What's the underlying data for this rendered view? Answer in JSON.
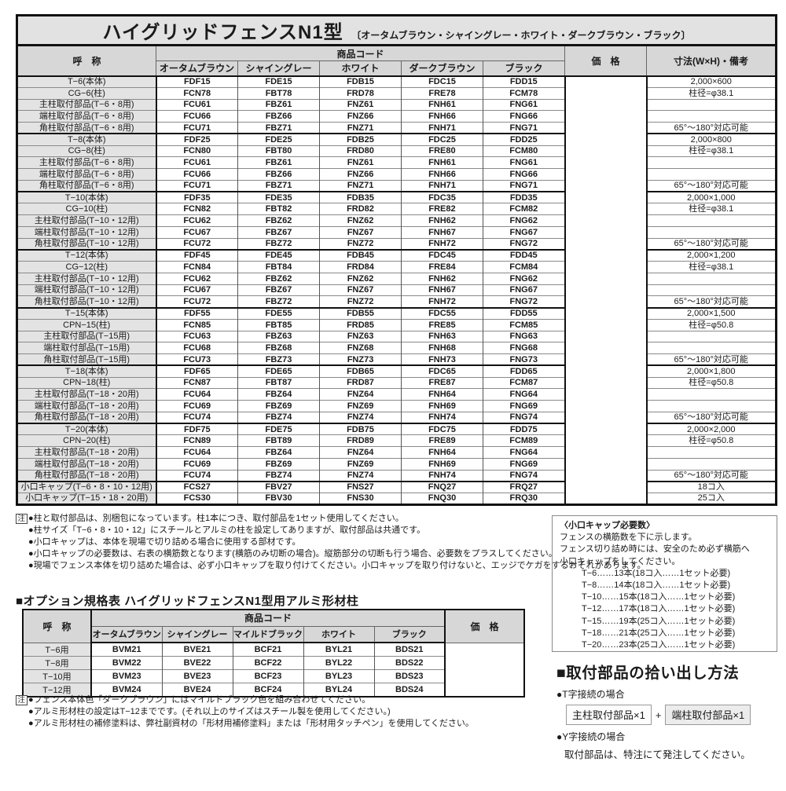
{
  "main_table": {
    "title": "ハイグリッドフェンスN1型",
    "title_colors": "〔オータムブラウン・シャイングレー・ホワイト・ダークブラウン・ブラック〕",
    "col_name": "呼　称",
    "col_code": "商品コード",
    "col_price": "価　格",
    "col_dim": "寸法(W×H)・備考",
    "color_columns": [
      "オータムブラウン",
      "シャイングレー",
      "ホワイト",
      "ダークブラウン",
      "ブラック"
    ],
    "rows": [
      {
        "name": "T−6(本体)",
        "codes": [
          "FDF15",
          "FDE15",
          "FDB15",
          "FDC15",
          "FDD15"
        ],
        "dim": "2,000×600",
        "group_start": true
      },
      {
        "name": "CG−6(柱)",
        "codes": [
          "FCN78",
          "FBT78",
          "FRD78",
          "FRE78",
          "FCM78"
        ],
        "dim": "柱径=φ38.1",
        "group_start": false
      },
      {
        "name": "主柱取付部品(T−6・8用)",
        "codes": [
          "FCU61",
          "FBZ61",
          "FNZ61",
          "FNH61",
          "FNG61"
        ],
        "dim": "",
        "group_start": false
      },
      {
        "name": "端柱取付部品(T−6・8用)",
        "codes": [
          "FCU66",
          "FBZ66",
          "FNZ66",
          "FNH66",
          "FNG66"
        ],
        "dim": "",
        "group_start": false
      },
      {
        "name": "角柱取付部品(T−6・8用)",
        "codes": [
          "FCU71",
          "FBZ71",
          "FNZ71",
          "FNH71",
          "FNG71"
        ],
        "dim": "65°〜180°対応可能",
        "group_start": false
      },
      {
        "name": "T−8(本体)",
        "codes": [
          "FDF25",
          "FDE25",
          "FDB25",
          "FDC25",
          "FDD25"
        ],
        "dim": "2,000×800",
        "group_start": true
      },
      {
        "name": "CG−8(柱)",
        "codes": [
          "FCN80",
          "FBT80",
          "FRD80",
          "FRE80",
          "FCM80"
        ],
        "dim": "柱径=φ38.1",
        "group_start": false
      },
      {
        "name": "主柱取付部品(T−6・8用)",
        "codes": [
          "FCU61",
          "FBZ61",
          "FNZ61",
          "FNH61",
          "FNG61"
        ],
        "dim": "",
        "group_start": false
      },
      {
        "name": "端柱取付部品(T−6・8用)",
        "codes": [
          "FCU66",
          "FBZ66",
          "FNZ66",
          "FNH66",
          "FNG66"
        ],
        "dim": "",
        "group_start": false
      },
      {
        "name": "角柱取付部品(T−6・8用)",
        "codes": [
          "FCU71",
          "FBZ71",
          "FNZ71",
          "FNH71",
          "FNG71"
        ],
        "dim": "65°〜180°対応可能",
        "group_start": false
      },
      {
        "name": "T−10(本体)",
        "codes": [
          "FDF35",
          "FDE35",
          "FDB35",
          "FDC35",
          "FDD35"
        ],
        "dim": "2,000×1,000",
        "group_start": true
      },
      {
        "name": "CG−10(柱)",
        "codes": [
          "FCN82",
          "FBT82",
          "FRD82",
          "FRE82",
          "FCM82"
        ],
        "dim": "柱径=φ38.1",
        "group_start": false
      },
      {
        "name": "主柱取付部品(T−10・12用)",
        "codes": [
          "FCU62",
          "FBZ62",
          "FNZ62",
          "FNH62",
          "FNG62"
        ],
        "dim": "",
        "group_start": false
      },
      {
        "name": "端柱取付部品(T−10・12用)",
        "codes": [
          "FCU67",
          "FBZ67",
          "FNZ67",
          "FNH67",
          "FNG67"
        ],
        "dim": "",
        "group_start": false
      },
      {
        "name": "角柱取付部品(T−10・12用)",
        "codes": [
          "FCU72",
          "FBZ72",
          "FNZ72",
          "FNH72",
          "FNG72"
        ],
        "dim": "65°〜180°対応可能",
        "group_start": false
      },
      {
        "name": "T−12(本体)",
        "codes": [
          "FDF45",
          "FDE45",
          "FDB45",
          "FDC45",
          "FDD45"
        ],
        "dim": "2,000×1,200",
        "group_start": true
      },
      {
        "name": "CG−12(柱)",
        "codes": [
          "FCN84",
          "FBT84",
          "FRD84",
          "FRE84",
          "FCM84"
        ],
        "dim": "柱径=φ38.1",
        "group_start": false
      },
      {
        "name": "主柱取付部品(T−10・12用)",
        "codes": [
          "FCU62",
          "FBZ62",
          "FNZ62",
          "FNH62",
          "FNG62"
        ],
        "dim": "",
        "group_start": false
      },
      {
        "name": "端柱取付部品(T−10・12用)",
        "codes": [
          "FCU67",
          "FBZ67",
          "FNZ67",
          "FNH67",
          "FNG67"
        ],
        "dim": "",
        "group_start": false
      },
      {
        "name": "角柱取付部品(T−10・12用)",
        "codes": [
          "FCU72",
          "FBZ72",
          "FNZ72",
          "FNH72",
          "FNG72"
        ],
        "dim": "65°〜180°対応可能",
        "group_start": false
      },
      {
        "name": "T−15(本体)",
        "codes": [
          "FDF55",
          "FDE55",
          "FDB55",
          "FDC55",
          "FDD55"
        ],
        "dim": "2,000×1,500",
        "group_start": true
      },
      {
        "name": "CPN−15(柱)",
        "codes": [
          "FCN85",
          "FBT85",
          "FRD85",
          "FRE85",
          "FCM85"
        ],
        "dim": "柱径=φ50.8",
        "group_start": false
      },
      {
        "name": "主柱取付部品(T−15用)",
        "codes": [
          "FCU63",
          "FBZ63",
          "FNZ63",
          "FNH63",
          "FNG63"
        ],
        "dim": "",
        "group_start": false
      },
      {
        "name": "端柱取付部品(T−15用)",
        "codes": [
          "FCU68",
          "FBZ68",
          "FNZ68",
          "FNH68",
          "FNG68"
        ],
        "dim": "",
        "group_start": false
      },
      {
        "name": "角柱取付部品(T−15用)",
        "codes": [
          "FCU73",
          "FBZ73",
          "FNZ73",
          "FNH73",
          "FNG73"
        ],
        "dim": "65°〜180°対応可能",
        "group_start": false
      },
      {
        "name": "T−18(本体)",
        "codes": [
          "FDF65",
          "FDE65",
          "FDB65",
          "FDC65",
          "FDD65"
        ],
        "dim": "2,000×1,800",
        "group_start": true
      },
      {
        "name": "CPN−18(柱)",
        "codes": [
          "FCN87",
          "FBT87",
          "FRD87",
          "FRE87",
          "FCM87"
        ],
        "dim": "柱径=φ50.8",
        "group_start": false
      },
      {
        "name": "主柱取付部品(T−18・20用)",
        "codes": [
          "FCU64",
          "FBZ64",
          "FNZ64",
          "FNH64",
          "FNG64"
        ],
        "dim": "",
        "group_start": false
      },
      {
        "name": "端柱取付部品(T−18・20用)",
        "codes": [
          "FCU69",
          "FBZ69",
          "FNZ69",
          "FNH69",
          "FNG69"
        ],
        "dim": "",
        "group_start": false
      },
      {
        "name": "角柱取付部品(T−18・20用)",
        "codes": [
          "FCU74",
          "FBZ74",
          "FNZ74",
          "FNH74",
          "FNG74"
        ],
        "dim": "65°〜180°対応可能",
        "group_start": false
      },
      {
        "name": "T−20(本体)",
        "codes": [
          "FDF75",
          "FDE75",
          "FDB75",
          "FDC75",
          "FDD75"
        ],
        "dim": "2,000×2,000",
        "group_start": true
      },
      {
        "name": "CPN−20(柱)",
        "codes": [
          "FCN89",
          "FBT89",
          "FRD89",
          "FRE89",
          "FCM89"
        ],
        "dim": "柱径=φ50.8",
        "group_start": false
      },
      {
        "name": "主柱取付部品(T−18・20用)",
        "codes": [
          "FCU64",
          "FBZ64",
          "FNZ64",
          "FNH64",
          "FNG64"
        ],
        "dim": "",
        "group_start": false
      },
      {
        "name": "端柱取付部品(T−18・20用)",
        "codes": [
          "FCU69",
          "FBZ69",
          "FNZ69",
          "FNH69",
          "FNG69"
        ],
        "dim": "",
        "group_start": false
      },
      {
        "name": "角柱取付部品(T−18・20用)",
        "codes": [
          "FCU74",
          "FBZ74",
          "FNZ74",
          "FNH74",
          "FNG74"
        ],
        "dim": "65°〜180°対応可能",
        "group_start": false
      },
      {
        "name": "小口キャップ(T−6・8・10・12用)",
        "codes": [
          "FCS27",
          "FBV27",
          "FNS27",
          "FNQ27",
          "FRQ27"
        ],
        "dim": "18コ入",
        "group_start": true
      },
      {
        "name": "小口キャップ(T−15・18・20用)",
        "codes": [
          "FCS30",
          "FBV30",
          "FNS30",
          "FNQ30",
          "FRQ30"
        ],
        "dim": "25コ入",
        "group_start": false
      }
    ]
  },
  "main_notes": {
    "mark": "注",
    "items": [
      "●柱と取付部品は、別梱包になっています。柱1本につき、取付部品を1セット使用してください。",
      "●柱サイズ「T−6・8・10・12」にスチールとアルミの柱を設定してありますが、取付部品は共通です。",
      "●小口キャップは、本体を現場で切り詰める場合に使用する部材です。",
      "●小口キャップの必要数は、右表の横筋数となります(横筋のみ切断の場合)。縦筋部分の切断も行う場合、必要数をプラスしてください。",
      "●現場でフェンス本体を切り詰めた場合は、必ず小口キャップを取り付けてください。小口キャップを取り付けないと、エッジでケガをするおそれがあります。"
    ]
  },
  "cap_box": {
    "title": "〈小口キャップ必要数〉",
    "intro": [
      "フェンスの横筋数を下に示します。",
      "フェンス切り詰め時には、安全のため必ず横筋へ",
      "小口キャップをしてください。"
    ],
    "items": [
      "T−6……13本(18コ入……1セット必要)",
      "T−8……14本(18コ入……1セット必要)",
      "T−10……15本(18コ入……1セット必要)",
      "T−12……17本(18コ入……1セット必要)",
      "T−15……19本(25コ入……1セット必要)",
      "T−18……21本(25コ入……1セット必要)",
      "T−20……23本(25コ入……1セット必要)"
    ]
  },
  "option_table": {
    "title": "■オプション規格表 ハイグリッドフェンスN1型用アルミ形材柱",
    "col_name": "呼　称",
    "col_code": "商品コード",
    "col_price": "価　格",
    "color_columns": [
      "オータムブラウン",
      "シャイングレー",
      "マイルドブラック",
      "ホワイト",
      "ブラック"
    ],
    "rows": [
      {
        "name": "T−6用",
        "codes": [
          "BVM21",
          "BVE21",
          "BCF21",
          "BYL21",
          "BDS21"
        ]
      },
      {
        "name": "T−8用",
        "codes": [
          "BVM22",
          "BVE22",
          "BCF22",
          "BYL22",
          "BDS22"
        ]
      },
      {
        "name": "T−10用",
        "codes": [
          "BVM23",
          "BVE23",
          "BCF23",
          "BYL23",
          "BDS23"
        ]
      },
      {
        "name": "T−12用",
        "codes": [
          "BVM24",
          "BVE24",
          "BCF24",
          "BYL24",
          "BDS24"
        ]
      }
    ]
  },
  "option_notes": {
    "mark": "注",
    "items": [
      "●フェンス本体色「ダークブラウン」にはマイルドブラック色を組み合わせてください。",
      "●アルミ形材柱の設定はT−12までです。(それ以上のサイズはスチール製を使用してください。)",
      "●アルミ形材柱の補修塗料は、弊社副資材の「形材用補修塗料」または「形材用タッチペン」を使用してください。"
    ]
  },
  "pickup": {
    "title": "■取付部品の拾い出し方法",
    "t_case": "●T字接続の場合",
    "box1": "主柱取付部品×1",
    "plus": "+",
    "box2": "端柱取付部品×1",
    "y_case": "●Y字接続の場合",
    "y_note": "取付部品は、特注にて発注してください。"
  }
}
